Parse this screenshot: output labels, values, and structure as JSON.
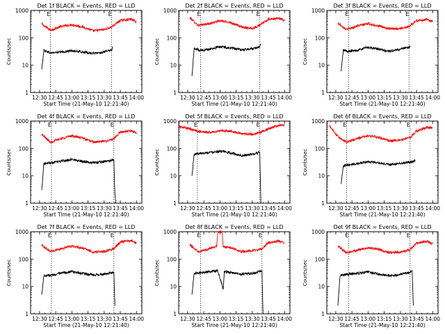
{
  "chart_data": [
    {
      "type": "line",
      "title": "Det 1f BLACK = Events, RED = LLD",
      "xlabel": "Start Time (21-May-10 12:21:40)",
      "ylabel": "Counts/sec",
      "yscale": "log",
      "ylim": [
        1,
        1000
      ],
      "xlim": [
        "12:21:40",
        "14:05:00"
      ],
      "x_ticks": [
        "12:30",
        "12:45",
        "13:00",
        "13:15",
        "13:30",
        "13:45",
        "14:00"
      ],
      "y_ticks": [
        "1",
        "10",
        "100",
        "1000"
      ],
      "markers": {
        "vlines": [
          "12:40:00",
          "13:37:00"
        ],
        "labels": [
          "E",
          "E"
        ]
      },
      "series": [
        {
          "color": "#ff0000",
          "x": [
            "12:32",
            "12:40",
            "12:50",
            "13:00",
            "13:10",
            "13:20",
            "13:30",
            "13:37",
            "13:45",
            "13:55",
            "14:00"
          ],
          "values": [
            320,
            190,
            260,
            300,
            250,
            180,
            200,
            250,
            430,
            480,
            380
          ]
        },
        {
          "color": "#000000",
          "x": [
            "12:32",
            "12:34",
            "12:40",
            "12:50",
            "13:00",
            "13:10",
            "13:20",
            "13:30",
            "13:37",
            "13:38"
          ],
          "values": [
            7,
            35,
            28,
            30,
            34,
            30,
            27,
            30,
            36,
            45
          ]
        }
      ]
    },
    {
      "type": "line",
      "title": "Det 2f BLACK = Events, RED = LLD",
      "xlabel": "Start Time (21-May-10 12:21:40)",
      "ylabel": "Counts/sec",
      "yscale": "log",
      "ylim": [
        1,
        1000
      ],
      "xlim": [
        "12:21:40",
        "14:05:00"
      ],
      "x_ticks": [
        "12:30",
        "12:45",
        "13:00",
        "13:15",
        "13:30",
        "13:45",
        "14:00"
      ],
      "y_ticks": [
        "1",
        "10",
        "100",
        "1000"
      ],
      "markers": {
        "vlines": [
          "12:42:00",
          "13:37:00"
        ],
        "labels": [
          "E",
          "E"
        ]
      },
      "series": [
        {
          "color": "#ff0000",
          "x": [
            "12:32",
            "12:40",
            "12:50",
            "13:00",
            "13:10",
            "13:20",
            "13:30",
            "13:37",
            "13:45",
            "13:55",
            "14:00"
          ],
          "values": [
            550,
            280,
            330,
            420,
            360,
            250,
            220,
            290,
            470,
            520,
            420
          ]
        },
        {
          "color": "#000000",
          "x": [
            "12:34",
            "12:36",
            "12:42",
            "12:50",
            "13:00",
            "13:10",
            "13:20",
            "13:30",
            "13:37",
            "13:38"
          ],
          "values": [
            4,
            40,
            35,
            38,
            48,
            42,
            36,
            40,
            48,
            60
          ]
        }
      ]
    },
    {
      "type": "line",
      "title": "Det 3f BLACK = Events, RED = LLD",
      "xlabel": "Start Time (21-May-10 12:21:40)",
      "ylabel": "Counts/sec",
      "yscale": "log",
      "ylim": [
        1,
        1000
      ],
      "xlim": [
        "12:21:40",
        "14:05:00"
      ],
      "x_ticks": [
        "12:30",
        "12:45",
        "13:00",
        "13:15",
        "13:30",
        "13:45",
        "14:00"
      ],
      "y_ticks": [
        "1",
        "10",
        "100",
        "1000"
      ],
      "markers": {
        "vlines": [
          "12:42:00",
          "13:38:00"
        ],
        "labels": [
          "E",
          "E"
        ]
      },
      "series": [
        {
          "color": "#ff0000",
          "x": [
            "12:32",
            "12:40",
            "12:50",
            "13:00",
            "13:10",
            "13:20",
            "13:30",
            "13:38",
            "13:45",
            "13:55",
            "14:00"
          ],
          "values": [
            350,
            200,
            270,
            330,
            270,
            210,
            220,
            260,
            420,
            470,
            390
          ]
        },
        {
          "color": "#000000",
          "x": [
            "12:35",
            "12:37",
            "12:42",
            "12:50",
            "13:00",
            "13:10",
            "13:20",
            "13:30",
            "13:38",
            "13:39"
          ],
          "values": [
            6,
            35,
            32,
            35,
            45,
            38,
            32,
            38,
            45,
            52
          ]
        }
      ]
    },
    {
      "type": "line",
      "title": "Det 4f BLACK = Events, RED = LLD",
      "xlabel": "Start Time (21-May-10 12:21:40)",
      "ylabel": "Counts/sec",
      "yscale": "log",
      "ylim": [
        1,
        1000
      ],
      "xlim": [
        "12:21:40",
        "14:05:00"
      ],
      "x_ticks": [
        "12:30",
        "12:45",
        "13:00",
        "13:15",
        "13:30",
        "13:45",
        "14:00"
      ],
      "y_ticks": [
        "1",
        "10",
        "100",
        "1000"
      ],
      "markers": {
        "vlines": [
          "12:41:00",
          "13:39:00"
        ],
        "labels": [
          "E",
          "E"
        ]
      },
      "series": [
        {
          "color": "#ff0000",
          "x": [
            "12:32",
            "12:40",
            "12:50",
            "13:00",
            "13:10",
            "13:20",
            "13:30",
            "13:39",
            "13:45",
            "13:55",
            "14:00"
          ],
          "values": [
            330,
            170,
            230,
            290,
            240,
            170,
            180,
            220,
            390,
            440,
            360
          ]
        },
        {
          "color": "#000000",
          "x": [
            "12:32",
            "12:34",
            "12:41",
            "12:50",
            "13:00",
            "13:10",
            "13:20",
            "13:30",
            "13:39",
            "13:40",
            "13:41"
          ],
          "values": [
            3,
            28,
            30,
            34,
            40,
            34,
            30,
            33,
            38,
            2,
            1
          ]
        }
      ]
    },
    {
      "type": "line",
      "title": "Det 5f BLACK = Events, RED = LLD",
      "xlabel": "Start Time (21-May-10 12:21:40)",
      "ylabel": "Counts/sec",
      "yscale": "log",
      "ylim": [
        1,
        1000
      ],
      "xlim": [
        "12:21:40",
        "14:05:00"
      ],
      "x_ticks": [
        "12:30",
        "12:45",
        "13:00",
        "13:15",
        "13:30",
        "13:45",
        "14:00"
      ],
      "y_ticks": [
        "1",
        "10",
        "100",
        "1000"
      ],
      "markers": {
        "vlines": [
          "12:39:00",
          "13:37:00"
        ],
        "labels": [
          "E",
          "E"
        ]
      },
      "series": [
        {
          "color": "#ff0000",
          "x": [
            "12:22",
            "12:30",
            "12:40",
            "12:50",
            "13:00",
            "13:10",
            "13:20",
            "13:30",
            "13:37",
            "13:45",
            "13:55",
            "14:00"
          ],
          "values": [
            620,
            550,
            420,
            380,
            440,
            430,
            350,
            330,
            380,
            520,
            700,
            700
          ]
        },
        {
          "color": "#000000",
          "x": [
            "12:34",
            "12:36",
            "12:39",
            "12:50",
            "13:00",
            "13:10",
            "13:20",
            "13:30",
            "13:37",
            "13:38"
          ],
          "values": [
            10,
            60,
            65,
            72,
            80,
            68,
            55,
            60,
            72,
            1
          ]
        }
      ]
    },
    {
      "type": "line",
      "title": "Det 6f BLACK = Events, RED = LLD",
      "xlabel": "Start Time (21-May-10 12:21:40)",
      "ylabel": "Counts/sec",
      "yscale": "log",
      "ylim": [
        1,
        1000
      ],
      "xlim": [
        "12:21:40",
        "14:05:00"
      ],
      "x_ticks": [
        "12:30",
        "12:45",
        "13:00",
        "13:15",
        "13:30",
        "13:45",
        "14:00"
      ],
      "y_ticks": [
        "1",
        "10",
        "100",
        "1000"
      ],
      "markers": {
        "vlines": [
          "12:40:00",
          "13:39:00"
        ],
        "labels": [
          "E",
          "E"
        ]
      },
      "series": [
        {
          "color": "#ff0000",
          "x": [
            "12:24",
            "12:32",
            "12:40",
            "12:50",
            "13:00",
            "13:10",
            "13:20",
            "13:30",
            "13:39",
            "13:45",
            "13:55",
            "14:00"
          ],
          "values": [
            700,
            270,
            170,
            230,
            290,
            250,
            190,
            200,
            250,
            430,
            600,
            550
          ]
        },
        {
          "color": "#000000",
          "x": [
            "12:35",
            "12:37",
            "12:40",
            "12:50",
            "13:00",
            "13:10",
            "13:20",
            "13:30",
            "13:39",
            "13:44"
          ],
          "values": [
            5,
            22,
            25,
            28,
            33,
            30,
            26,
            28,
            32,
            35
          ]
        }
      ]
    },
    {
      "type": "line",
      "title": "Det 7f BLACK = Events, RED = LLD",
      "xlabel": "Start Time (21-May-10 12:21:40)",
      "ylabel": "Counts/sec",
      "yscale": "log",
      "ylim": [
        1,
        1000
      ],
      "xlim": [
        "12:21:40",
        "14:05:00"
      ],
      "x_ticks": [
        "12:30",
        "12:45",
        "13:00",
        "13:15",
        "13:30",
        "13:45",
        "14:00"
      ],
      "y_ticks": [
        "1",
        "10",
        "100",
        "1000"
      ],
      "markers": {
        "vlines": [
          "12:41:00",
          "13:39:00"
        ],
        "labels": [
          "E",
          "E"
        ]
      },
      "series": [
        {
          "color": "#ff0000",
          "x": [
            "12:32",
            "12:40",
            "12:50",
            "13:00",
            "13:10",
            "13:20",
            "13:30",
            "13:39",
            "13:45",
            "13:55",
            "14:00"
          ],
          "values": [
            330,
            190,
            240,
            300,
            250,
            180,
            190,
            240,
            420,
            470,
            380
          ]
        },
        {
          "color": "#000000",
          "x": [
            "12:32",
            "12:34",
            "12:41",
            "12:50",
            "13:00",
            "13:10",
            "13:20",
            "13:30",
            "13:39",
            "13:40"
          ],
          "values": [
            5,
            25,
            26,
            30,
            35,
            30,
            26,
            28,
            33,
            2
          ]
        }
      ]
    },
    {
      "type": "line",
      "title": "Det 8f BLACK = Events, RED = LLD",
      "xlabel": "Start Time (21-May-10 12:21:40)",
      "ylabel": "Counts/sec",
      "yscale": "log",
      "ylim": [
        1,
        1000
      ],
      "xlim": [
        "12:21:40",
        "14:05:00"
      ],
      "x_ticks": [
        "12:30",
        "12:45",
        "13:00",
        "13:15",
        "13:30",
        "13:45",
        "14:00"
      ],
      "y_ticks": [
        "1",
        "10",
        "100",
        "1000"
      ],
      "markers": {
        "vlines": [
          "12:42:00",
          "13:39:00"
        ],
        "labels": [
          "E",
          "E"
        ]
      },
      "series": [
        {
          "color": "#ff0000",
          "x": [
            "12:32",
            "12:40",
            "12:50",
            "12:57",
            "12:58",
            "13:02",
            "13:03",
            "13:10",
            "13:20",
            "13:30",
            "13:39",
            "13:45",
            "13:55",
            "14:00"
          ],
          "values": [
            330,
            190,
            240,
            290,
            1000,
            1000,
            280,
            260,
            190,
            200,
            240,
            400,
            460,
            380
          ]
        },
        {
          "color": "#000000",
          "x": [
            "12:34",
            "12:36",
            "12:42",
            "12:50",
            "12:58",
            "13:03",
            "13:04",
            "13:10",
            "13:20",
            "13:30",
            "13:39",
            "13:40"
          ],
          "values": [
            5,
            30,
            32,
            35,
            38,
            8,
            35,
            32,
            28,
            30,
            38,
            1
          ]
        }
      ]
    },
    {
      "type": "line",
      "title": "Det 9f BLACK = Events, RED = LLD",
      "xlabel": "Start Time (21-May-10 12:21:40)",
      "ylabel": "Counts/sec",
      "yscale": "log",
      "ylim": [
        1,
        1000
      ],
      "xlim": [
        "12:21:40",
        "14:05:00"
      ],
      "x_ticks": [
        "12:30",
        "12:45",
        "13:00",
        "13:15",
        "13:30",
        "13:45",
        "14:00"
      ],
      "y_ticks": [
        "1",
        "10",
        "100",
        "1000"
      ],
      "markers": {
        "vlines": [
          "12:42:00",
          "13:39:00"
        ],
        "labels": [
          "E",
          "E"
        ]
      },
      "series": [
        {
          "color": "#ff0000",
          "x": [
            "12:32",
            "12:40",
            "12:50",
            "13:00",
            "13:10",
            "13:20",
            "13:30",
            "13:39",
            "13:45",
            "13:55",
            "14:00"
          ],
          "values": [
            300,
            170,
            210,
            260,
            230,
            170,
            180,
            220,
            380,
            450,
            350
          ]
        },
        {
          "color": "#000000",
          "x": [
            "12:32",
            "12:34",
            "12:42",
            "12:50",
            "13:00",
            "13:10",
            "13:20",
            "13:30",
            "13:39",
            "13:41",
            "13:42"
          ],
          "values": [
            2,
            25,
            28,
            30,
            34,
            28,
            24,
            28,
            33,
            36,
            2
          ]
        }
      ]
    }
  ]
}
